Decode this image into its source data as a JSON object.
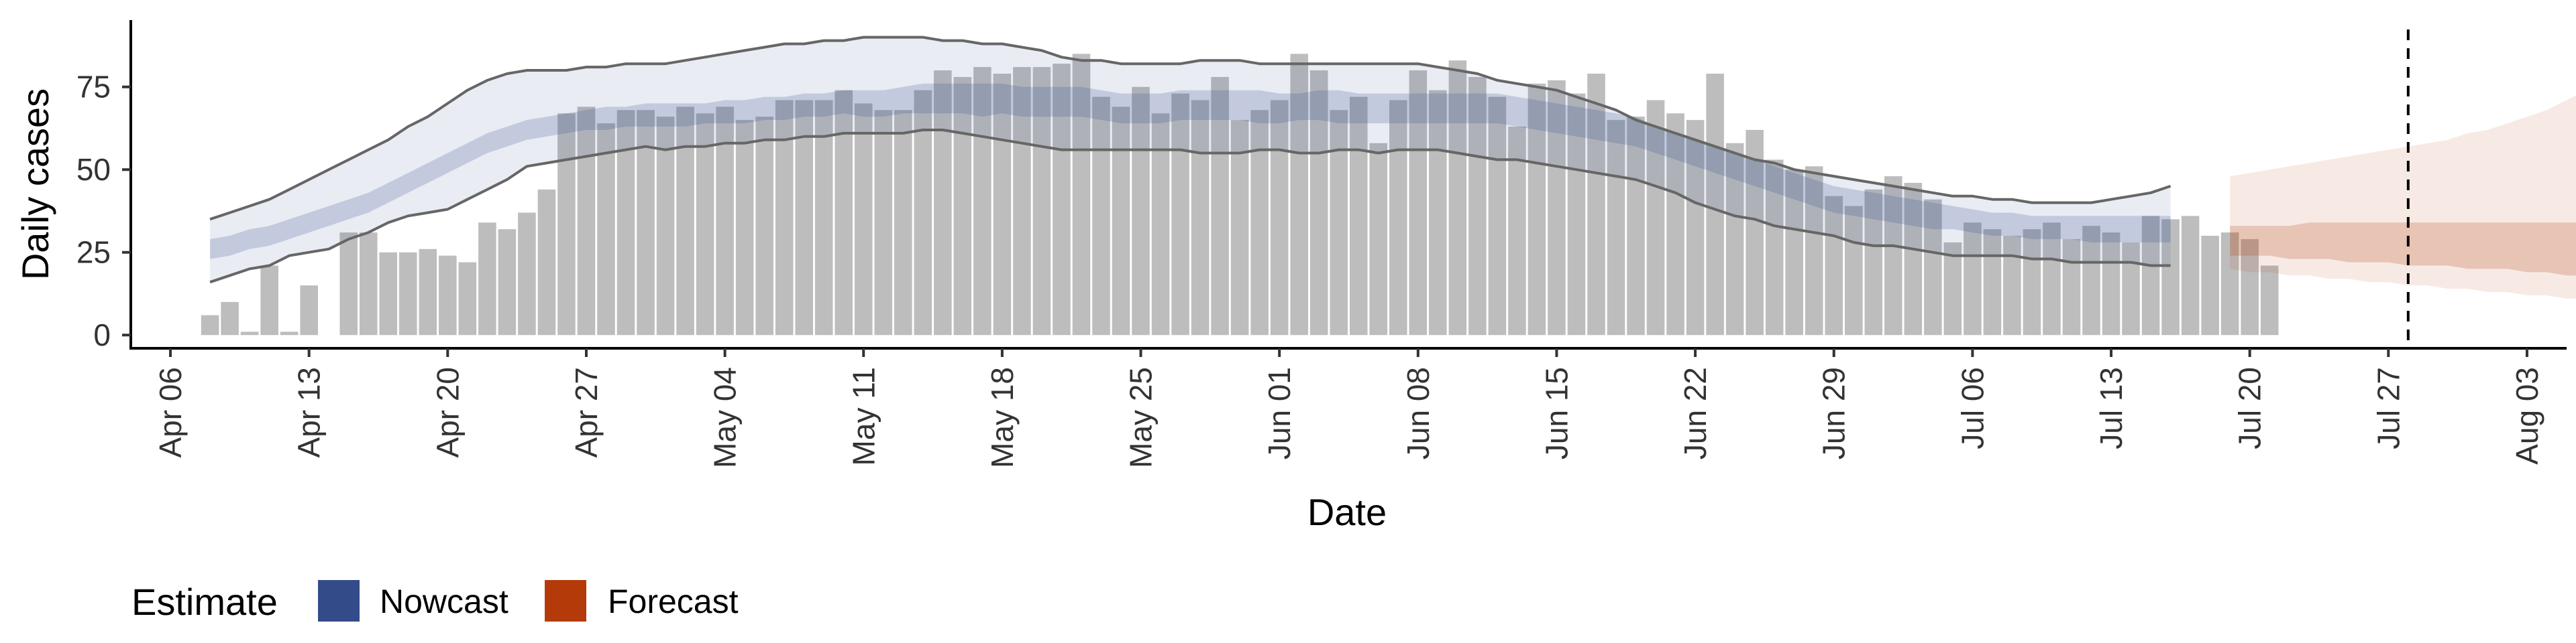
{
  "chart_data": {
    "type": "bar",
    "xlabel": "Date",
    "ylabel": "Daily cases",
    "xlim": [
      "2020-04-04",
      "2020-08-05"
    ],
    "ylim": [
      -4,
      96
    ],
    "y_ticks": [
      0,
      25,
      50,
      75
    ],
    "x_ticks": [
      {
        "date": "2020-04-06",
        "label": "Apr 06"
      },
      {
        "date": "2020-04-13",
        "label": "Apr 13"
      },
      {
        "date": "2020-04-20",
        "label": "Apr 20"
      },
      {
        "date": "2020-04-27",
        "label": "Apr 27"
      },
      {
        "date": "2020-05-04",
        "label": "May 04"
      },
      {
        "date": "2020-05-11",
        "label": "May 11"
      },
      {
        "date": "2020-05-18",
        "label": "May 18"
      },
      {
        "date": "2020-05-25",
        "label": "May 25"
      },
      {
        "date": "2020-06-01",
        "label": "Jun 01"
      },
      {
        "date": "2020-06-08",
        "label": "Jun 08"
      },
      {
        "date": "2020-06-15",
        "label": "Jun 15"
      },
      {
        "date": "2020-06-22",
        "label": "Jun 22"
      },
      {
        "date": "2020-06-29",
        "label": "Jun 29"
      },
      {
        "date": "2020-07-06",
        "label": "Jul 06"
      },
      {
        "date": "2020-07-13",
        "label": "Jul 13"
      },
      {
        "date": "2020-07-20",
        "label": "Jul 20"
      },
      {
        "date": "2020-07-27",
        "label": "Jul 27"
      },
      {
        "date": "2020-08-03",
        "label": "Aug 03"
      }
    ],
    "grid": false,
    "vline_date": "2020-07-28",
    "bar_color": "#bdbdbd",
    "bars": {
      "start_date": "2020-04-08",
      "values": [
        6,
        10,
        1,
        21,
        1,
        15,
        0,
        31,
        31,
        25,
        25,
        26,
        24,
        22,
        34,
        32,
        37,
        44,
        67,
        69,
        64,
        68,
        68,
        66,
        69,
        67,
        69,
        65,
        66,
        71,
        71,
        71,
        74,
        70,
        68,
        68,
        74,
        80,
        78,
        81,
        79,
        81,
        81,
        82,
        85,
        72,
        69,
        75,
        67,
        73,
        71,
        78,
        65,
        68,
        71,
        85,
        80,
        68,
        72,
        58,
        71,
        80,
        74,
        83,
        78,
        72,
        63,
        76,
        77,
        73,
        79,
        65,
        66,
        71,
        67,
        65,
        79,
        58,
        62,
        53,
        50,
        51,
        42,
        39,
        44,
        48,
        46,
        41,
        28,
        34,
        32,
        30,
        32,
        34,
        29,
        33,
        31,
        28,
        36,
        35,
        36,
        30,
        31,
        29,
        21
      ]
    },
    "series": [
      {
        "name": "Nowcast",
        "color": "#3a5090",
        "start_date": "2020-04-08",
        "median": [
          26,
          27,
          29,
          30,
          32,
          34,
          36,
          38,
          40,
          43,
          46,
          49,
          52,
          55,
          58,
          60,
          62,
          63,
          64,
          65,
          66,
          66,
          66,
          67,
          67,
          67,
          68,
          68,
          68,
          69,
          70,
          70,
          71,
          70,
          70,
          71,
          72,
          72,
          72,
          71,
          71,
          71,
          70,
          70,
          71,
          70,
          69,
          68,
          69,
          69,
          69,
          70,
          70,
          69,
          68,
          69,
          70,
          69,
          69,
          69,
          68,
          68,
          68,
          69,
          69,
          69,
          68,
          67,
          66,
          65,
          64,
          63,
          61,
          59,
          57,
          55,
          53,
          51,
          49,
          47,
          45,
          43,
          41,
          40,
          39,
          38,
          37,
          36,
          35,
          34,
          34,
          33,
          33,
          32,
          32,
          32,
          32,
          32,
          32,
          32
        ],
        "lower_50": [
          23,
          24,
          26,
          27,
          29,
          31,
          33,
          35,
          37,
          40,
          43,
          46,
          49,
          52,
          55,
          57,
          59,
          60,
          61,
          62,
          62,
          63,
          63,
          63,
          63,
          64,
          64,
          64,
          65,
          65,
          66,
          66,
          67,
          66,
          66,
          67,
          67,
          67,
          67,
          66,
          67,
          66,
          66,
          66,
          66,
          65,
          64,
          64,
          64,
          65,
          65,
          65,
          65,
          64,
          64,
          65,
          65,
          64,
          64,
          64,
          64,
          64,
          64,
          64,
          64,
          64,
          63,
          62,
          61,
          60,
          59,
          58,
          57,
          55,
          53,
          51,
          49,
          47,
          45,
          43,
          41,
          39,
          37,
          36,
          35,
          34,
          33,
          32,
          32,
          31,
          30,
          30,
          29,
          29,
          29,
          28,
          28,
          28,
          28,
          28
        ],
        "upper_50": [
          29,
          30,
          32,
          33,
          35,
          37,
          39,
          41,
          43,
          46,
          49,
          52,
          55,
          58,
          61,
          63,
          65,
          66,
          67,
          68,
          69,
          69,
          70,
          70,
          70,
          70,
          71,
          71,
          72,
          72,
          73,
          73,
          74,
          74,
          74,
          75,
          76,
          76,
          76,
          76,
          76,
          75,
          75,
          75,
          75,
          74,
          73,
          73,
          73,
          74,
          74,
          74,
          74,
          74,
          73,
          73,
          74,
          74,
          73,
          73,
          73,
          73,
          73,
          73,
          73,
          73,
          72,
          71,
          70,
          69,
          68,
          67,
          66,
          63,
          61,
          59,
          57,
          55,
          53,
          51,
          49,
          47,
          45,
          44,
          43,
          42,
          41,
          40,
          39,
          38,
          37,
          37,
          36,
          36,
          36,
          36,
          36,
          36,
          36,
          36
        ],
        "lower_90": [
          16,
          18,
          20,
          21,
          24,
          25,
          26,
          29,
          31,
          34,
          36,
          37,
          38,
          41,
          44,
          47,
          51,
          52,
          53,
          54,
          55,
          56,
          57,
          56,
          57,
          57,
          58,
          58,
          59,
          59,
          60,
          60,
          61,
          61,
          61,
          61,
          62,
          62,
          61,
          60,
          59,
          58,
          57,
          56,
          56,
          56,
          56,
          56,
          56,
          56,
          55,
          55,
          55,
          56,
          56,
          55,
          55,
          56,
          56,
          55,
          56,
          56,
          56,
          55,
          54,
          53,
          53,
          52,
          51,
          50,
          49,
          48,
          47,
          45,
          43,
          40,
          38,
          36,
          35,
          33,
          32,
          31,
          30,
          28,
          27,
          27,
          26,
          25,
          24,
          24,
          24,
          24,
          23,
          23,
          22,
          22,
          22,
          22,
          21,
          21
        ],
        "upper_90": [
          35,
          37,
          39,
          41,
          44,
          47,
          50,
          53,
          56,
          59,
          63,
          66,
          70,
          74,
          77,
          79,
          80,
          80,
          80,
          81,
          81,
          82,
          82,
          82,
          83,
          84,
          85,
          86,
          87,
          88,
          88,
          89,
          89,
          90,
          90,
          90,
          90,
          89,
          89,
          88,
          88,
          87,
          86,
          84,
          83,
          83,
          82,
          82,
          82,
          82,
          83,
          83,
          83,
          82,
          82,
          82,
          82,
          82,
          82,
          82,
          82,
          82,
          81,
          80,
          79,
          77,
          76,
          75,
          74,
          72,
          70,
          68,
          65,
          63,
          61,
          59,
          57,
          55,
          53,
          52,
          50,
          49,
          48,
          47,
          46,
          45,
          44,
          43,
          42,
          42,
          41,
          41,
          40,
          40,
          40,
          40,
          41,
          42,
          43,
          45
        ]
      },
      {
        "name": "Forecast",
        "color": "#b5400e",
        "start_date": "2020-07-19",
        "lower_50": [
          24,
          24,
          24,
          23,
          23,
          23,
          22,
          22,
          22,
          21,
          21,
          21,
          20,
          20,
          20,
          19,
          19,
          18,
          18,
          18
        ],
        "upper_50": [
          33,
          33,
          33,
          33,
          34,
          34,
          34,
          34,
          34,
          34,
          34,
          34,
          34,
          34,
          34,
          34,
          34,
          34,
          34,
          34
        ],
        "lower_90": [
          20,
          19,
          19,
          18,
          18,
          17,
          17,
          16,
          16,
          15,
          15,
          14,
          14,
          13,
          13,
          12,
          12,
          11,
          11,
          10
        ],
        "upper_90": [
          48,
          49,
          50,
          51,
          52,
          53,
          54,
          55,
          56,
          57,
          58,
          59,
          61,
          62,
          64,
          66,
          68,
          71,
          74,
          77
        ]
      }
    ],
    "legend": {
      "title": "Estimate",
      "position": "bottom-left",
      "items": [
        {
          "label": "Nowcast",
          "color": "#344b8a"
        },
        {
          "label": "Forecast",
          "color": "#b53a0a"
        }
      ]
    }
  }
}
